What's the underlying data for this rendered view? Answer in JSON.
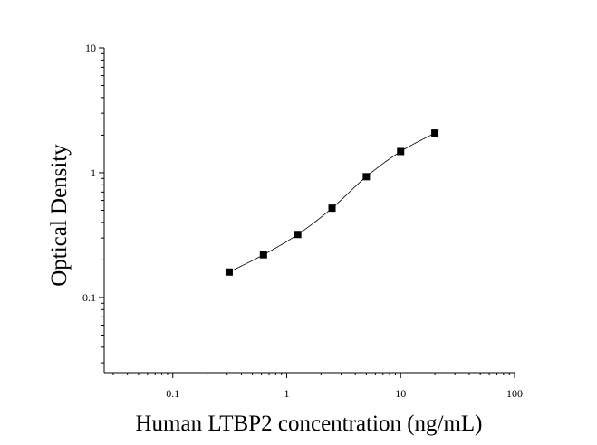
{
  "chart_data": {
    "type": "scatter",
    "x_scale": "log",
    "y_scale": "log",
    "xlabel": "Human LTBP2 concentration (ng/mL)",
    "ylabel": "Optical Density",
    "xlim": [
      0.025,
      100
    ],
    "ylim": [
      0.025,
      10
    ],
    "x_ticks": [
      {
        "value": 0.1,
        "label": "0.1"
      },
      {
        "value": 1,
        "label": "1"
      },
      {
        "value": 10,
        "label": "10"
      },
      {
        "value": 100,
        "label": "100"
      }
    ],
    "y_ticks": [
      {
        "value": 0.1,
        "label": "0.1"
      },
      {
        "value": 1,
        "label": "1"
      },
      {
        "value": 10,
        "label": "10"
      }
    ],
    "grid": false,
    "series": [
      {
        "x": [
          0.3125,
          0.625,
          1.25,
          2.5,
          5,
          10,
          20
        ],
        "y": [
          0.16,
          0.22,
          0.32,
          0.52,
          0.93,
          1.48,
          2.08
        ],
        "marker": "square",
        "color": "#000000",
        "fit_line": "smooth"
      }
    ]
  }
}
